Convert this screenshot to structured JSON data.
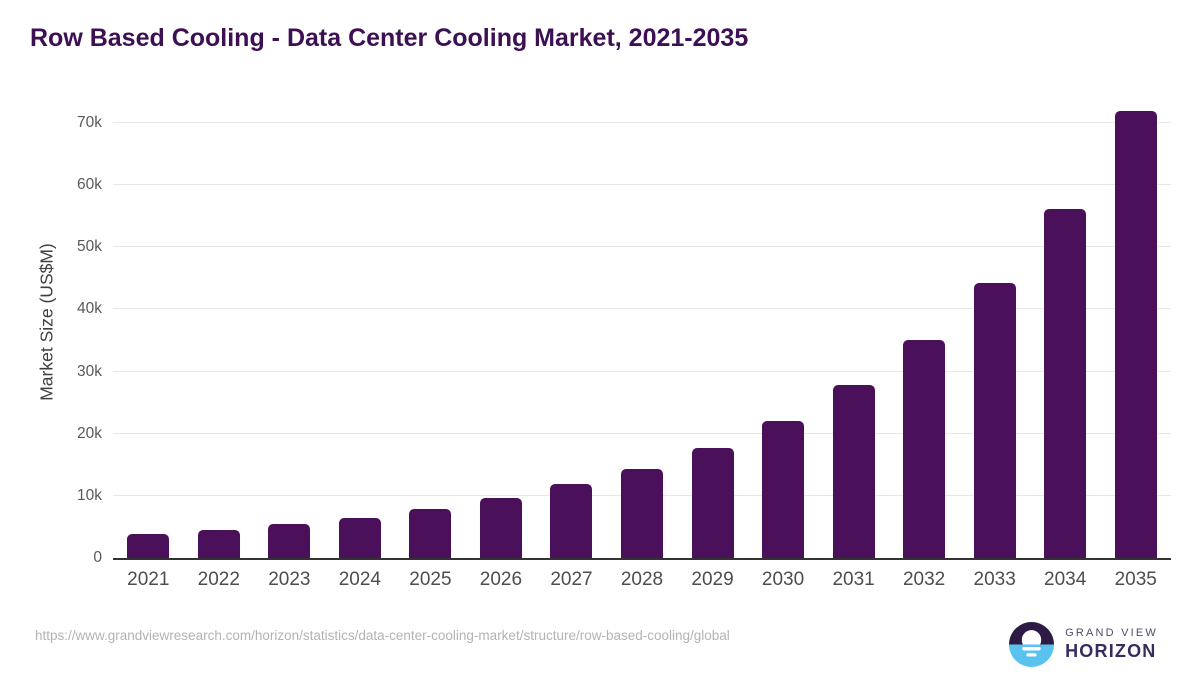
{
  "header": {
    "title": "Row Based Cooling - Data Center Cooling Market, 2021-2035"
  },
  "chart_data": {
    "type": "bar",
    "title": "Row Based Cooling - Data Center Cooling Market, 2021-2035",
    "categories": [
      "2021",
      "2022",
      "2023",
      "2024",
      "2025",
      "2026",
      "2027",
      "2028",
      "2029",
      "2030",
      "2031",
      "2032",
      "2033",
      "2034",
      "2035"
    ],
    "values": [
      3900,
      4500,
      5400,
      6500,
      7900,
      9600,
      11900,
      14400,
      17700,
      22100,
      27800,
      35000,
      44300,
      56200,
      71900
    ],
    "unit": "US$M",
    "xlabel": "",
    "ylabel": "Market Size (US$M)",
    "ylim": [
      0,
      74000
    ],
    "yticks": [
      {
        "value": 0,
        "label": "0"
      },
      {
        "value": 10000,
        "label": "10k"
      },
      {
        "value": 20000,
        "label": "20k"
      },
      {
        "value": 30000,
        "label": "30k"
      },
      {
        "value": 40000,
        "label": "40k"
      },
      {
        "value": 50000,
        "label": "50k"
      },
      {
        "value": 60000,
        "label": "60k"
      },
      {
        "value": 70000,
        "label": "70k"
      }
    ],
    "grid": "horizontal",
    "legend": "none",
    "bar_color": "#4a1059"
  },
  "footer": {
    "source_url": "https://www.grandviewresearch.com/horizon/statistics/data-center-cooling-market/structure/row-based-cooling/global",
    "logo": {
      "brand_line1": "GRAND VIEW",
      "brand_line2": "HORIZON"
    }
  },
  "colors": {
    "title": "#3c1053",
    "bar": "#4a1059",
    "grid": "#e7e7e7",
    "axis": "#333333",
    "xtick": "#4d4d4d",
    "ytick": "#595959",
    "axis_title": "#3f3f3f",
    "url": "#b3b3b3",
    "logo_purple": "#2d1b46",
    "logo_blue": "#5bc2ef",
    "logo_text1": "#514a66",
    "logo_text2": "#3a2b5f"
  }
}
